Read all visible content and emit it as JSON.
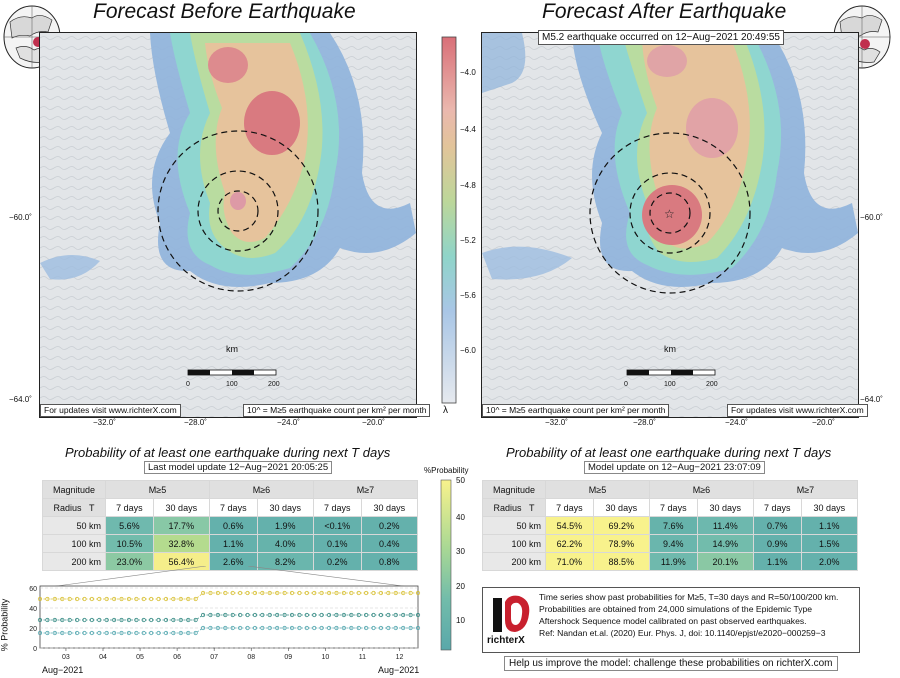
{
  "left": {
    "title": "Forecast Before Earthquake",
    "note_left": "For updates visit www.richterX.com",
    "note_right": "10^ = M≥5 earthquake count per km² per month",
    "scale_unit": "km",
    "scale_ticks": [
      "0",
      "100",
      "200"
    ]
  },
  "right": {
    "title": "Forecast After Earthquake",
    "event_label": "M5.2 earthquake occurred on 12−Aug−2021 20:49:55",
    "note_left": "10^ = M≥5 earthquake count per km² per month",
    "note_right": "For updates visit www.richterX.com",
    "scale_unit": "km",
    "scale_ticks": [
      "0",
      "100",
      "200"
    ]
  },
  "lon_ticks": [
    "−32.0˚",
    "−28.0˚",
    "−24.0˚",
    "−20.0˚"
  ],
  "lat_ticks": [
    "−60.0˚",
    "−64.0˚"
  ],
  "colorbar": {
    "label": "λ",
    "ticks": [
      "−4.0",
      "−4.4",
      "−4.8",
      "−5.2",
      "−5.6",
      "−6.0"
    ]
  },
  "prob_left": {
    "title": "Probability of at least one earthquake during next T days",
    "subtitle": "Last model update 12−Aug−2021 20:05:25",
    "corner_top": "Magnitude",
    "corner_radius": "Radius",
    "corner_t": "T",
    "magnitudes": [
      "M≥5",
      "M≥6",
      "M≥7"
    ],
    "periods": [
      "7 days",
      "30 days"
    ],
    "rows": [
      {
        "radius": "50 km",
        "values": [
          "5.6%",
          "17.7%",
          "0.6%",
          "1.9%",
          "<0.1%",
          "0.2%"
        ]
      },
      {
        "radius": "100 km",
        "values": [
          "10.5%",
          "32.8%",
          "1.1%",
          "4.0%",
          "0.1%",
          "0.4%"
        ]
      },
      {
        "radius": "200 km",
        "values": [
          "23.0%",
          "56.4%",
          "2.6%",
          "8.2%",
          "0.2%",
          "0.8%"
        ]
      }
    ]
  },
  "prob_right": {
    "title": "Probability of at least one earthquake during next T days",
    "subtitle": "Model update on 12−Aug−2021 23:07:09",
    "corner_top": "Magnitude",
    "corner_radius": "Radius",
    "corner_t": "T",
    "magnitudes": [
      "M≥5",
      "M≥6",
      "M≥7"
    ],
    "periods": [
      "7 days",
      "30 days"
    ],
    "rows": [
      {
        "radius": "50 km",
        "values": [
          "54.5%",
          "69.2%",
          "7.6%",
          "11.4%",
          "0.7%",
          "1.1%"
        ]
      },
      {
        "radius": "100 km",
        "values": [
          "62.2%",
          "78.9%",
          "9.4%",
          "14.9%",
          "0.9%",
          "1.5%"
        ]
      },
      {
        "radius": "200 km",
        "values": [
          "71.0%",
          "88.5%",
          "11.9%",
          "20.1%",
          "1.1%",
          "2.0%"
        ]
      }
    ]
  },
  "prob_colorbar": {
    "label": "%Probability",
    "ticks": [
      "50",
      "40",
      "30",
      "20",
      "10"
    ]
  },
  "chart_data": {
    "type": "line",
    "ylabel": "% Probability",
    "xlabel": "",
    "ylim": [
      0,
      62
    ],
    "yticks": [
      "0",
      "20",
      "40",
      "60"
    ],
    "xticks": [
      "03",
      "04",
      "05",
      "06",
      "07",
      "08",
      "09",
      "10",
      "11",
      "12"
    ],
    "x_start_label": "Aug−2021",
    "x_end_label": "Aug−2021",
    "x_range_days": [
      2.3,
      12.5
    ],
    "step_day": 6.6,
    "series": [
      {
        "color": "#d9c23a",
        "before": 49,
        "after": 55
      },
      {
        "color": "#3c8f88",
        "before": 28,
        "after": 33
      },
      {
        "color": "#58aab2",
        "before": 15,
        "after": 20
      }
    ]
  },
  "info": {
    "logo_text": "richterX",
    "lines": [
      "Time series show past probabilities for M≥5, T=30 days and R=50/100/200 km.",
      "Probabilities are obtained from 24,000 simulations of the Epidemic Type",
      "Aftershock Sequence model calibrated on past observed earthquakes.",
      "Ref: Nandan et.al. (2020) Eur. Phys. J, doi: 10.1140/epjst/e2020−000259−3"
    ]
  },
  "help_text": "Help us improve the model: challenge these probabilities on richterX.com"
}
